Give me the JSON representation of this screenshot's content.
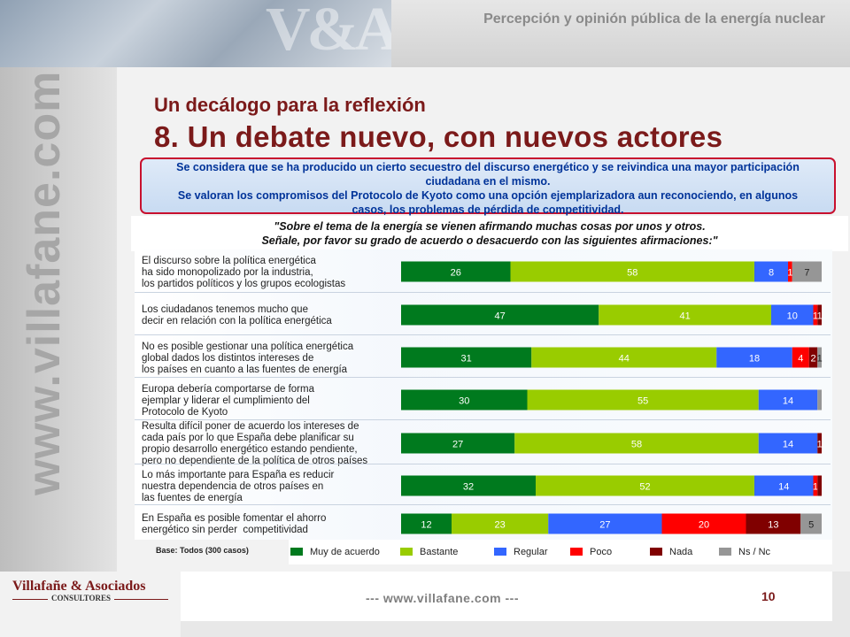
{
  "header": {
    "slide_title": "Percepción y opinión pública de la energía nuclear",
    "banner_monogram": "V&A"
  },
  "sidebar": {
    "vertical_url": "www.villafane.com"
  },
  "titles": {
    "subtitle": "Un decálogo para la reflexión",
    "main": "8. Un debate nuevo, con nuevos actores"
  },
  "summary": {
    "line1": "Se considera que se ha producido un cierto secuestro del discurso energético y se reivindica una mayor participación",
    "line2": "ciudadana en el mismo.",
    "line3": "Se valoran los compromisos del Protocolo de Kyoto como una opción ejemplarizadora aun reconociendo, en algunos",
    "line4": "casos, los problemas de pérdida de competitividad."
  },
  "question": {
    "line1": "\"Sobre el tema de la energía se vienen afirmando muchas cosas por unos y otros.",
    "line2": "Señale, por favor su grado de acuerdo o desacuerdo con las siguientes afirmaciones:\""
  },
  "chart_data": {
    "type": "bar",
    "orientation": "horizontal",
    "stacked": true,
    "unit": "%",
    "categories": [
      "El discurso sobre la política energética\nha sido monopolizado por la industria,\nlos partidos políticos y los grupos ecologistas",
      "Los ciudadanos tenemos mucho que\ndecir en relación con la política energética",
      "No es posible gestionar una política energética\nglobal dados los distintos intereses de\nlos países en cuanto a las fuentes de energía",
      "Europa debería comportarse de forma\nejemplar y liderar el cumplimiento del\nProtocolo de Kyoto",
      "Resulta difícil poner de acuerdo los intereses de\ncada país por lo que España debe planificar su\npropio desarrollo energético estando pendiente,\npero no dependiente de la política de otros países",
      "Lo más importante para España es reducir\nnuestra dependencia de otros países en\nlas fuentes de energía",
      "En España es posible fomentar el ahorro\nenergético sin perder  competitividad"
    ],
    "series": [
      {
        "name": "Muy de acuerdo",
        "color": "#007a1e",
        "values": [
          26,
          47,
          31,
          30,
          27,
          32,
          12
        ]
      },
      {
        "name": "Bastante",
        "color": "#99cc00",
        "values": [
          58,
          41,
          44,
          55,
          58,
          52,
          23
        ]
      },
      {
        "name": "Regular",
        "color": "#3366ff",
        "values": [
          8,
          10,
          18,
          14,
          14,
          14,
          27
        ]
      },
      {
        "name": "Poco",
        "color": "#ff0000",
        "values": [
          1,
          1,
          4,
          0,
          0,
          1,
          20
        ]
      },
      {
        "name": "Nada",
        "color": "#800000",
        "values": [
          0,
          1,
          2,
          0,
          1,
          1,
          13
        ]
      },
      {
        "name": "Ns / Nc",
        "color": "#969696",
        "values": [
          7,
          0,
          1,
          1,
          0,
          0,
          5
        ]
      }
    ],
    "data_labels": [
      [
        "26",
        "58",
        "8",
        "1",
        "",
        "7"
      ],
      [
        "47",
        "41",
        "10",
        "1",
        "1",
        ""
      ],
      [
        "31",
        "44",
        "18",
        "4",
        "2",
        "1"
      ],
      [
        "30",
        "55",
        "14",
        "",
        "",
        ""
      ],
      [
        "27",
        "58",
        "14",
        "",
        "1",
        ""
      ],
      [
        "32",
        "52",
        "14",
        "1",
        "",
        ""
      ],
      [
        "12",
        "23",
        "27",
        "20",
        "13",
        "5"
      ]
    ],
    "xlim": [
      0,
      100
    ],
    "legend_position": "bottom"
  },
  "base_note": "Base: Todos (300 casos)",
  "footer": {
    "logo_name": "Villafañe & Asociados",
    "logo_sub": "CONSULTORES",
    "url": "--- www.villafane.com ---",
    "page_number": "10"
  }
}
